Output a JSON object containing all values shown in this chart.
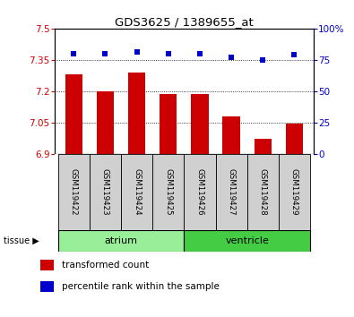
{
  "title": "GDS3625 / 1389655_at",
  "samples": [
    "GSM119422",
    "GSM119423",
    "GSM119424",
    "GSM119425",
    "GSM119426",
    "GSM119427",
    "GSM119428",
    "GSM119429"
  ],
  "transformed_counts": [
    7.28,
    7.2,
    7.29,
    7.185,
    7.185,
    7.08,
    6.97,
    7.045
  ],
  "percentile_ranks": [
    80,
    80,
    81,
    80,
    80,
    77,
    75,
    79
  ],
  "ylim": [
    6.9,
    7.5
  ],
  "yticks": [
    6.9,
    7.05,
    7.2,
    7.35,
    7.5
  ],
  "ytick_labels": [
    "6.9",
    "7.05",
    "7.2",
    "7.35",
    "7.5"
  ],
  "bar_color": "#cc0000",
  "dot_color": "#0000cc",
  "tissue_groups": [
    {
      "label": "atrium",
      "indices": [
        0,
        1,
        2,
        3
      ],
      "color": "#99ee99"
    },
    {
      "label": "ventricle",
      "indices": [
        4,
        5,
        6,
        7
      ],
      "color": "#44cc44"
    }
  ],
  "tissue_label": "tissue",
  "legend_bar_label": "transformed count",
  "legend_dot_label": "percentile rank within the sample",
  "right_yticks": [
    0,
    25,
    50,
    75,
    100
  ],
  "right_ytick_labels": [
    "0",
    "25",
    "50",
    "75",
    "100%"
  ],
  "sample_box_color": "#d0d0d0",
  "bar_width": 0.55
}
